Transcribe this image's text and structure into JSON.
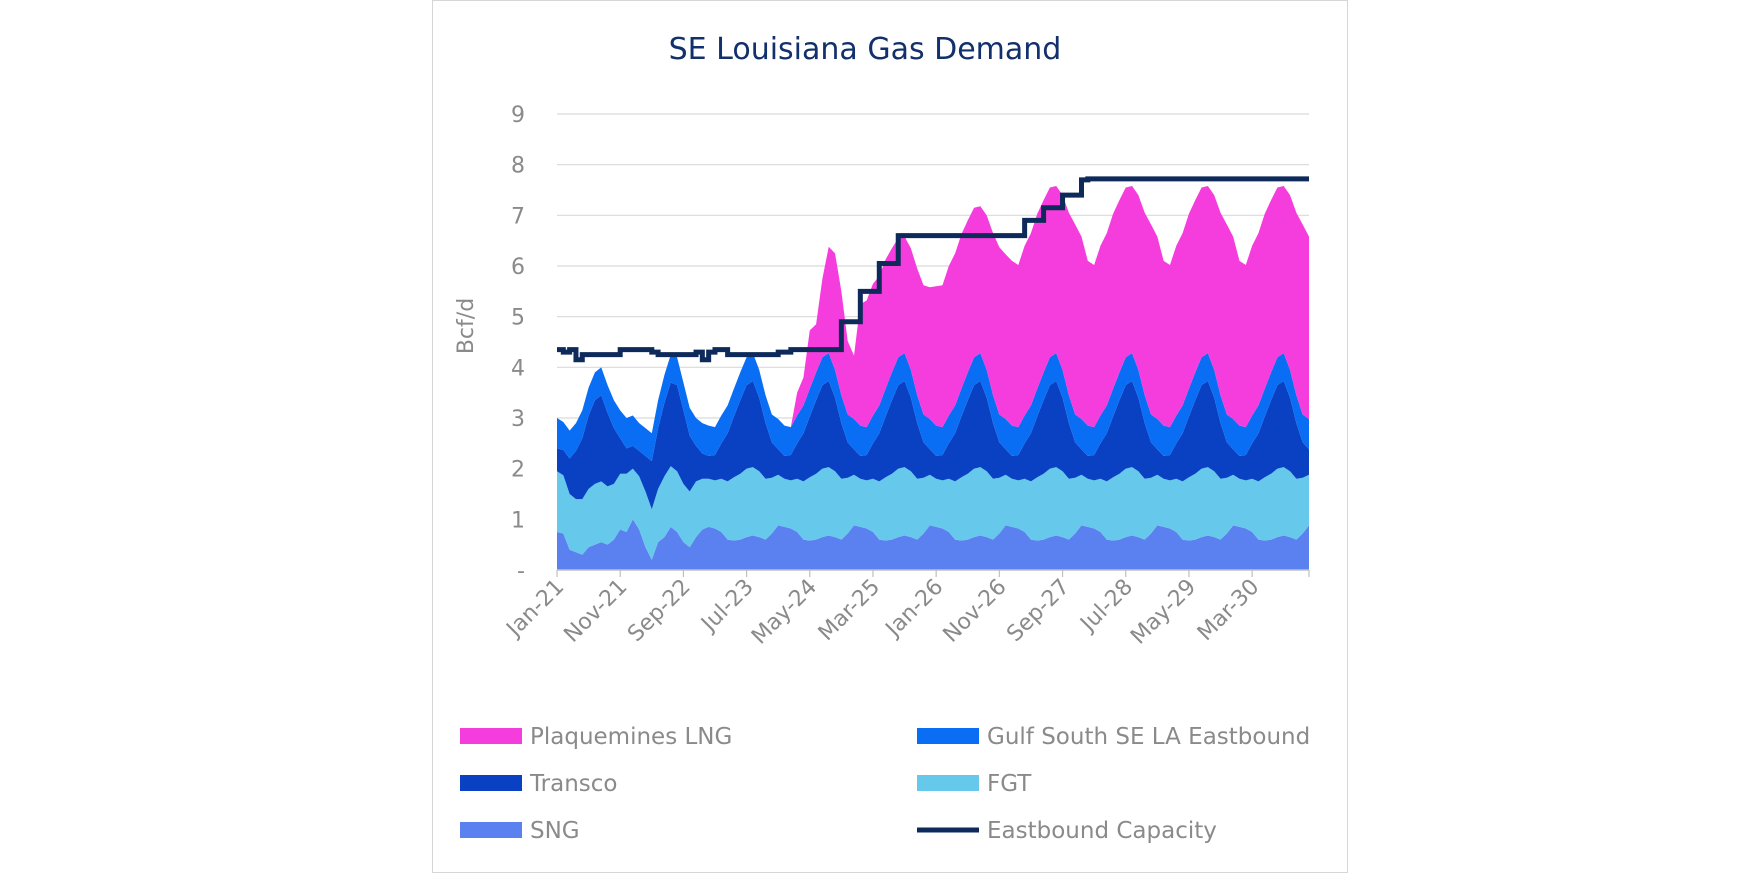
{
  "chart_data": {
    "type": "area",
    "title": "SE Louisiana Gas Demand",
    "ylabel": "Bcf/d",
    "xlabel": "",
    "ylim": [
      0,
      9
    ],
    "ytick_labels": [
      "-",
      "1",
      "2",
      "3",
      "4",
      "5",
      "6",
      "7",
      "8",
      "9"
    ],
    "xtick_labels": [
      "Jan-21",
      "Nov-21",
      "Sep-22",
      "Jul-23",
      "May-24",
      "Mar-25",
      "Jan-26",
      "Nov-26",
      "Sep-27",
      "Jul-28",
      "May-29",
      "Mar-30"
    ],
    "x_start": "Jan-21",
    "x_end": "Dec-30",
    "grid": true,
    "legend_position": "bottom",
    "stack_order": [
      "SNG",
      "FGT",
      "Transco",
      "Gulf South SE LA Eastbound",
      "Plaquemines LNG"
    ],
    "series": [
      {
        "name": "Plaquemines LNG",
        "kind": "area",
        "color": "#f53ddd"
      },
      {
        "name": "Gulf South SE LA Eastbound",
        "kind": "area",
        "color": "#0a6ef5"
      },
      {
        "name": "Transco",
        "kind": "area",
        "color": "#0a41c3"
      },
      {
        "name": "FGT",
        "kind": "area",
        "color": "#66c8ea"
      },
      {
        "name": "SNG",
        "kind": "area",
        "color": "#5b80f0"
      },
      {
        "name": "Eastbound Capacity",
        "kind": "line",
        "color": "#0d2a5b"
      }
    ],
    "baseline_values": {
      "SNG_2021": [
        0.75,
        0.72,
        0.4,
        0.35,
        0.3,
        0.45,
        0.5,
        0.55,
        0.5,
        0.6,
        0.8,
        0.75
      ],
      "SNG_2022": [
        1.0,
        0.8,
        0.45,
        0.2,
        0.55,
        0.65,
        0.85,
        0.75,
        0.55,
        0.45,
        0.65,
        0.8
      ],
      "SNG_typical": [
        0.85,
        0.82,
        0.75,
        0.6,
        0.58,
        0.6,
        0.65,
        0.68,
        0.65,
        0.6,
        0.72,
        0.88
      ],
      "FGT_2021": [
        1.2,
        1.15,
        1.1,
        1.05,
        1.1,
        1.15,
        1.2,
        1.2,
        1.15,
        1.1,
        1.1,
        1.15
      ],
      "FGT_2022": [
        1.0,
        1.05,
        1.1,
        1.0,
        1.05,
        1.2,
        1.2,
        1.2,
        1.15,
        1.1,
        1.1,
        1.0
      ],
      "FGT_typical": [
        0.95,
        0.95,
        1.05,
        1.15,
        1.25,
        1.3,
        1.35,
        1.35,
        1.3,
        1.2,
        1.1,
        1.0
      ],
      "Transco_typical": [
        0.45,
        0.5,
        0.7,
        0.95,
        1.2,
        1.45,
        1.65,
        1.7,
        1.45,
        1.1,
        0.7,
        0.5
      ],
      "GulfSouth_typical": [
        0.6,
        0.55,
        0.55,
        0.55,
        0.55,
        0.55,
        0.55,
        0.55,
        0.55,
        0.55,
        0.55,
        0.6
      ],
      "Plaquemines_2024_2025": [
        0.45,
        0.55,
        1.15,
        0.95,
        1.55,
        2.1,
        2.3,
        2.05,
        1.45,
        1.25
      ],
      "Plaquemines_2025_full": [
        2.4,
        2.5,
        2.6,
        2.55,
        2.55,
        2.45,
        2.35,
        2.3,
        2.4,
        2.5,
        2.55,
        2.6
      ],
      "Plaquemines_2026_full": [
        2.75,
        2.8,
        2.95,
        3.0,
        3.05,
        3.0,
        2.95,
        2.9,
        3.05,
        3.2,
        3.3,
        3.25
      ],
      "Plaquemines_full": [
        3.25,
        3.2,
        3.35,
        3.4,
        3.45,
        3.4,
        3.35,
        3.3,
        3.45,
        3.6,
        3.75,
        3.6
      ],
      "Capacity_2021": [
        4.35,
        4.3,
        4.35,
        4.15,
        4.25,
        4.25,
        4.25,
        4.25,
        4.25,
        4.25,
        4.35,
        4.35
      ],
      "Capacity_2022": [
        4.35,
        4.35,
        4.35,
        4.3,
        4.25,
        4.25,
        4.25,
        4.25,
        4.25,
        4.25,
        4.3,
        4.15
      ],
      "Capacity_2023": [
        4.3,
        4.35,
        4.35,
        4.25,
        4.25,
        4.25,
        4.25,
        4.25,
        4.25,
        4.25,
        4.25,
        4.3
      ],
      "Capacity_2024": [
        4.3,
        4.35,
        4.35,
        4.35,
        4.35,
        4.35,
        4.35,
        4.35,
        4.35,
        4.9,
        4.9,
        4.9
      ],
      "Capacity_2025": [
        5.5,
        5.5,
        5.5,
        6.05,
        6.05,
        6.05,
        6.6,
        6.6,
        6.6,
        6.6,
        6.6,
        6.6
      ],
      "Capacity_2026": [
        6.6,
        6.6,
        6.6,
        6.6,
        6.6,
        6.6,
        6.6,
        6.6,
        6.6,
        6.6,
        6.6,
        6.6
      ],
      "Capacity_2027": [
        6.6,
        6.6,
        6.9,
        6.9,
        6.9,
        7.15,
        7.15,
        7.15,
        7.4,
        7.4,
        7.4,
        7.7
      ],
      "Capacity_full": 7.72
    }
  }
}
